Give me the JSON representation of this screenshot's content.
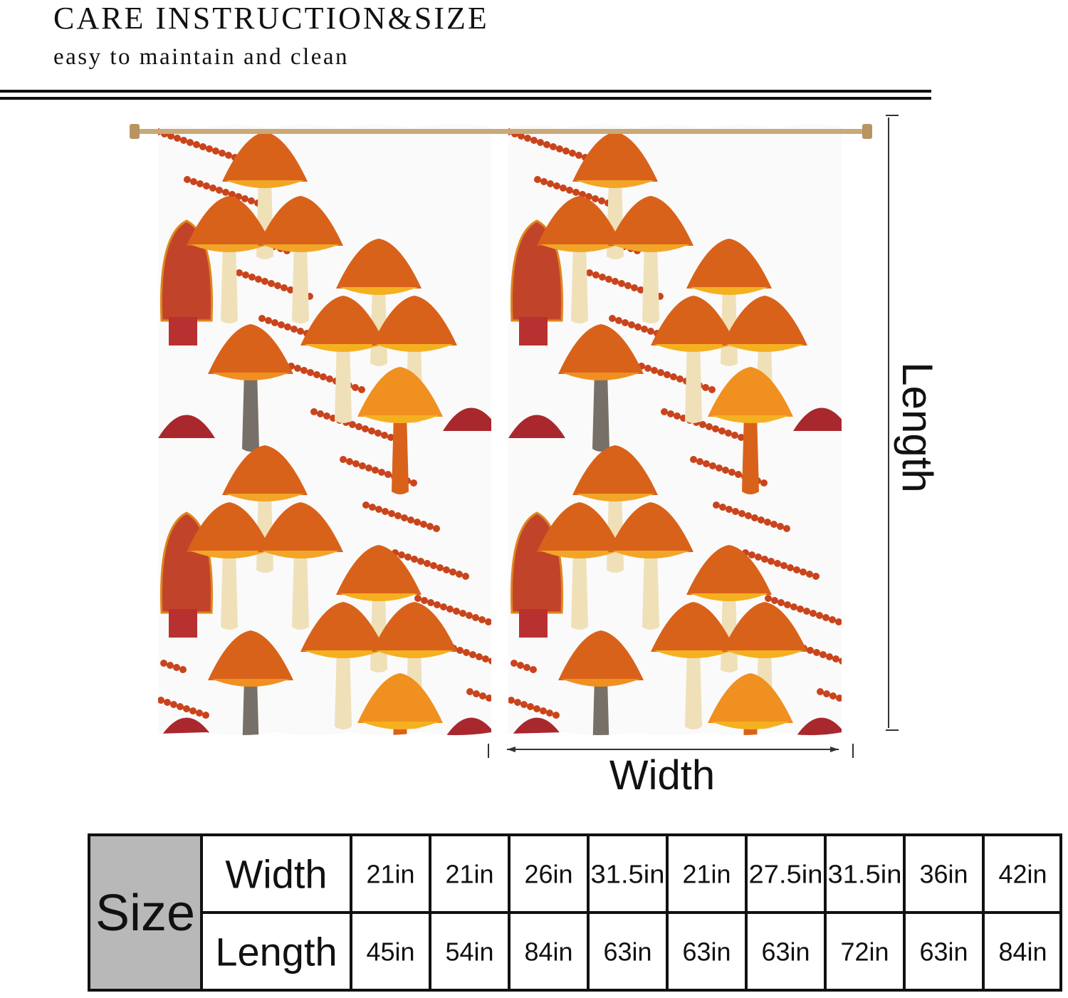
{
  "header": {
    "title": "CARE INSTRUCTION&SIZE",
    "subtitle": "easy to maintain and clean"
  },
  "diagram": {
    "length_label": "Length",
    "width_label": "Width"
  },
  "table": {
    "row_header": "Size",
    "rows": [
      [
        "Width",
        "21in",
        "21in",
        "26in",
        "31.5in",
        "21in",
        "27.5in",
        "31.5in",
        "36in",
        "42in"
      ],
      [
        "Length",
        "45in",
        "54in",
        "84in",
        "63in",
        "63in",
        "63in",
        "72in",
        "63in",
        "84in"
      ]
    ]
  }
}
